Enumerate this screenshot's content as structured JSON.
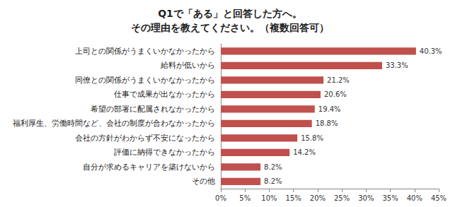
{
  "chart_data": {
    "type": "bar",
    "orientation": "horizontal",
    "title": "Q1で「ある」と回答した方へ。\nその理由を教えてください。（複数回答可）",
    "categories": [
      "上司との関係がうまくいかなかったから",
      "給料が低いから",
      "同僚との関係がうまくいかなかったから",
      "仕事で成果が出なかったから",
      "希望の部署に配属されなかったから",
      "福利厚生、労働時間など、会社の制度が合わなかったから",
      "会社の方針がわからず不安になったから",
      "評価に納得できなかったから",
      "自分が求めるキャリアを築けないから",
      "その他"
    ],
    "values": [
      40.3,
      33.3,
      21.2,
      20.6,
      19.4,
      18.8,
      15.8,
      14.2,
      8.2,
      8.2
    ],
    "value_labels": [
      "40.3%",
      "33.3%",
      "21.2%",
      "20.6%",
      "19.4%",
      "18.8%",
      "15.8%",
      "14.2%",
      "8.2%",
      "8.2%"
    ],
    "color": "#c0504d",
    "xlim": [
      0,
      45
    ],
    "xticks": [
      {
        "value": 0,
        "label": "0%"
      },
      {
        "value": 5,
        "label": "5%"
      },
      {
        "value": 10,
        "label": "10%"
      },
      {
        "value": 15,
        "label": "15%"
      },
      {
        "value": 20,
        "label": "20%"
      },
      {
        "value": 25,
        "label": "25%"
      },
      {
        "value": 30,
        "label": "30%"
      },
      {
        "value": 35,
        "label": "35%"
      },
      {
        "value": 40,
        "label": "40%"
      },
      {
        "value": 45,
        "label": "45%"
      }
    ],
    "grid": false,
    "data_labels": true
  }
}
